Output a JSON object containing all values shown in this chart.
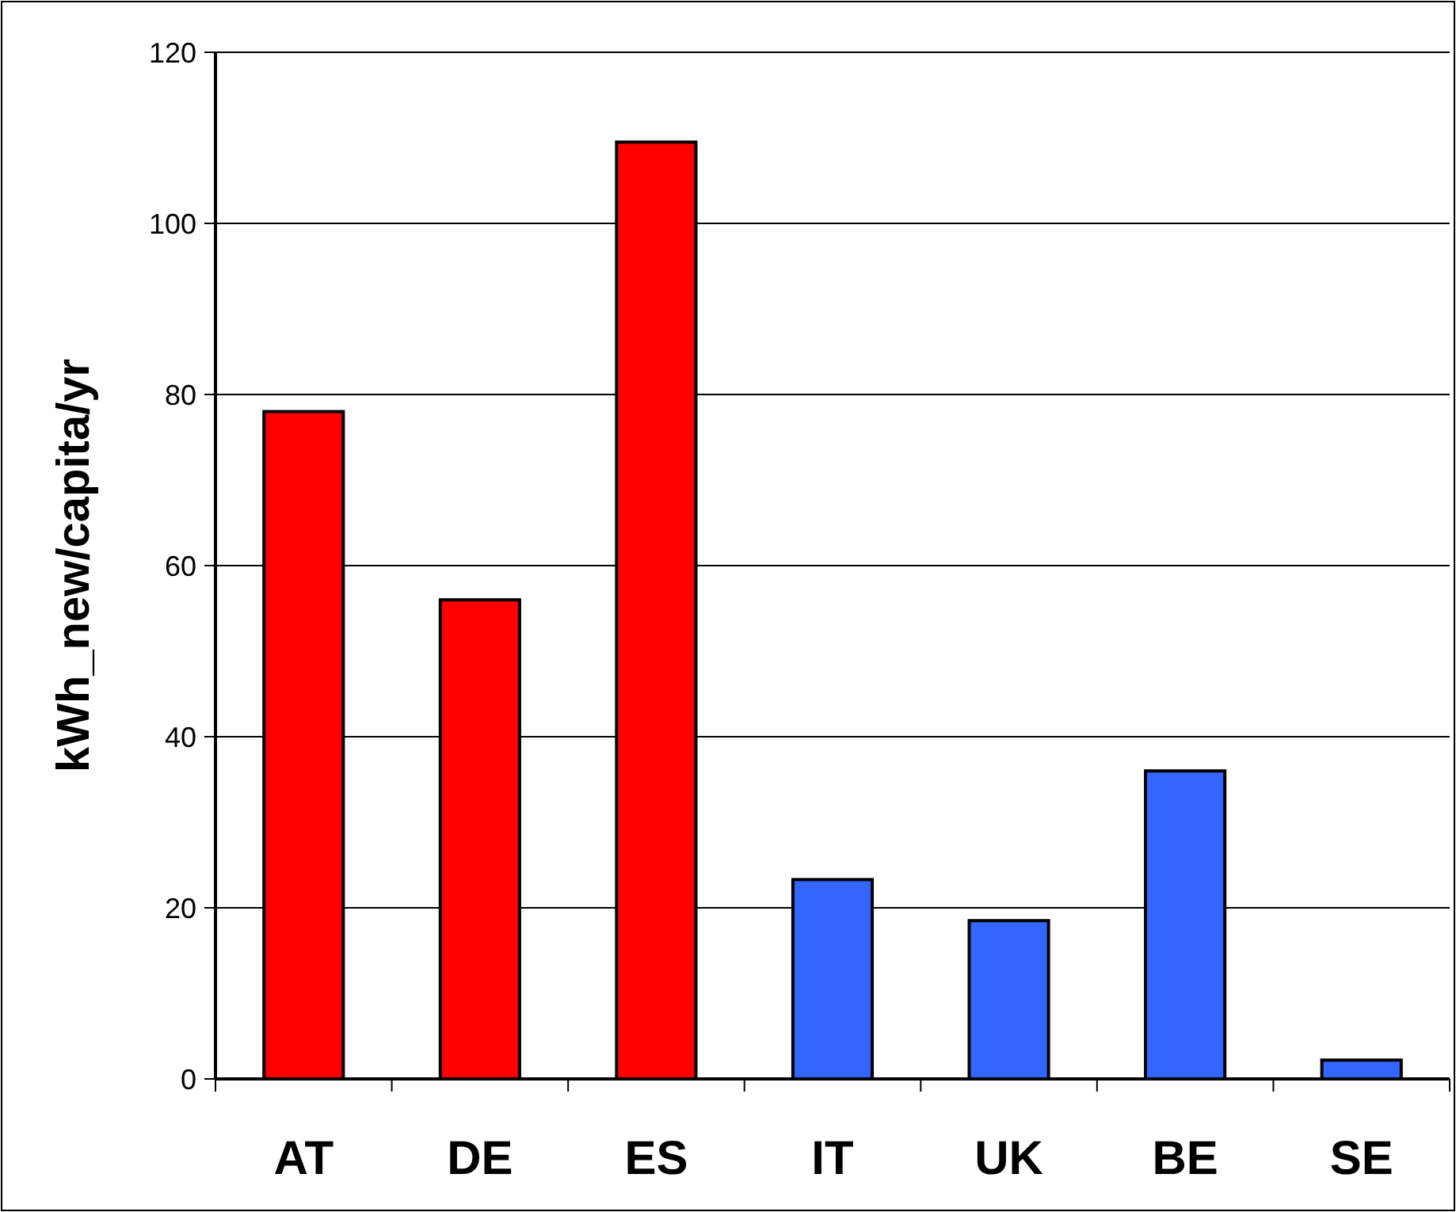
{
  "chart_data": {
    "type": "bar",
    "ylabel": "kWh_new/capita/yr",
    "categories": [
      "AT",
      "DE",
      "ES",
      "IT",
      "UK",
      "BE",
      "SE"
    ],
    "values": [
      78,
      56,
      109.5,
      23.3,
      18.5,
      36,
      2.2
    ],
    "colors": [
      "#ff0000",
      "#ff0000",
      "#ff0000",
      "#3366ff",
      "#3366ff",
      "#3366ff",
      "#3366ff"
    ],
    "ylim": [
      0,
      120
    ],
    "yticks": [
      0,
      20,
      40,
      60,
      80,
      100,
      120
    ],
    "grid": "y"
  }
}
